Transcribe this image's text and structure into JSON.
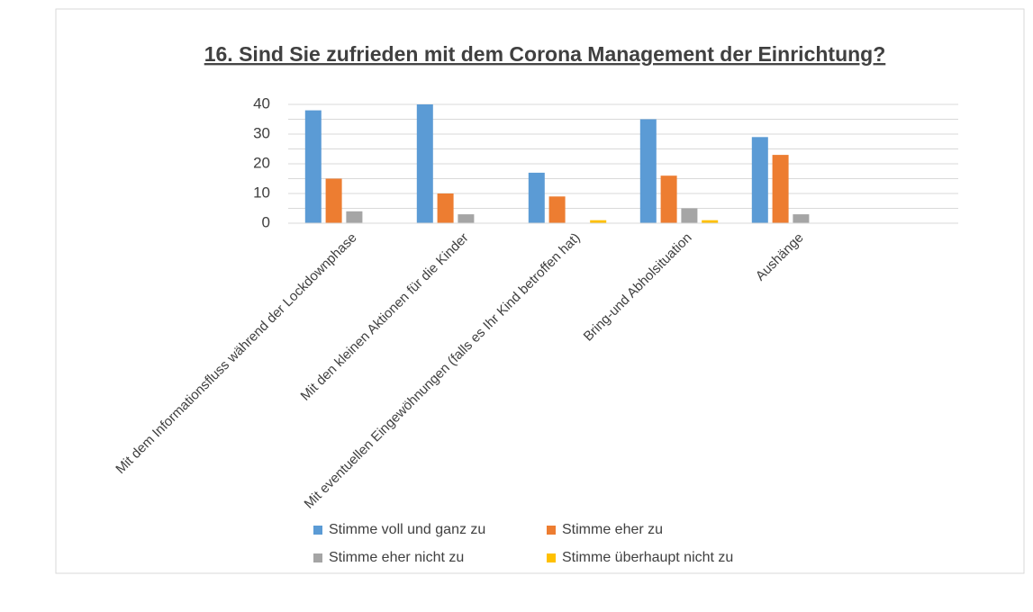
{
  "chart_data": {
    "type": "bar",
    "title": "16. Sind Sie zufrieden mit dem Corona Management der Einrichtung?",
    "categories": [
      "Mit dem Informationsfluss während der Lockdownphase",
      "Mit den kleinen Aktionen für die Kinder",
      "Mit eventuellen Eingewöhnungen (falls es Ihr Kind betroffen hat)",
      "Bring-und Abholsituation",
      "Aushänge",
      null
    ],
    "series": [
      {
        "name": "Stimme voll und ganz zu",
        "color": "#5b9bd5",
        "values": [
          38,
          40,
          17,
          35,
          29,
          null
        ]
      },
      {
        "name": "Stimme eher zu",
        "color": "#ed7d31",
        "values": [
          15,
          10,
          9,
          16,
          23,
          null
        ]
      },
      {
        "name": "Stimme eher nicht zu",
        "color": "#a5a5a5",
        "values": [
          4,
          3,
          0,
          5,
          3,
          null
        ]
      },
      {
        "name": "Stimme überhaupt nicht zu",
        "color": "#ffc000",
        "values": [
          0,
          0,
          1,
          1,
          0,
          null
        ]
      }
    ],
    "ylim": [
      0,
      40
    ],
    "yticks": [
      0,
      10,
      20,
      30,
      40
    ],
    "minor_yticks": [
      5,
      15,
      25,
      35
    ],
    "grid": true,
    "legend": "bottom"
  }
}
